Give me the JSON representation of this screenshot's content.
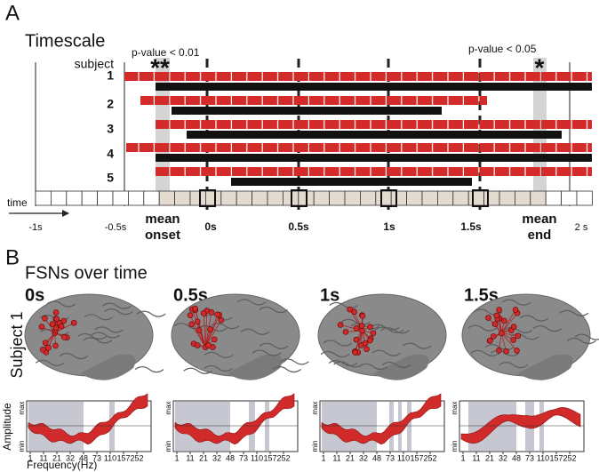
{
  "panel_a": {
    "letter": "A",
    "title": "Timescale",
    "p_left": "p-value < 0.01",
    "p_right": "p-value < 0.05",
    "stars_left": "**",
    "stars_right": "*",
    "subject_header": "subject",
    "subjects": [
      "1",
      "2",
      "3",
      "4",
      "5"
    ],
    "time_label": "time",
    "time_ticks": [
      "-1s",
      "-0.5s",
      "0s",
      "0.5s",
      "1s",
      "1.5s",
      "2 s"
    ],
    "mean_onset": [
      "mean",
      "onset"
    ],
    "mean_end": [
      "mean",
      "end"
    ]
  },
  "panel_b": {
    "letter": "B",
    "title": "FSNs over time",
    "times": [
      "0s",
      "0.5s",
      "1s",
      "1.5s"
    ],
    "row_label": "Subject 1",
    "y_label": "Amplitude",
    "y_max": "max",
    "y_min": "min",
    "x_ticks": [
      "1",
      "11",
      "21",
      "32",
      "48",
      "73",
      "110",
      "157",
      "252"
    ],
    "x_label": "Frequency(Hz)"
  }
}
